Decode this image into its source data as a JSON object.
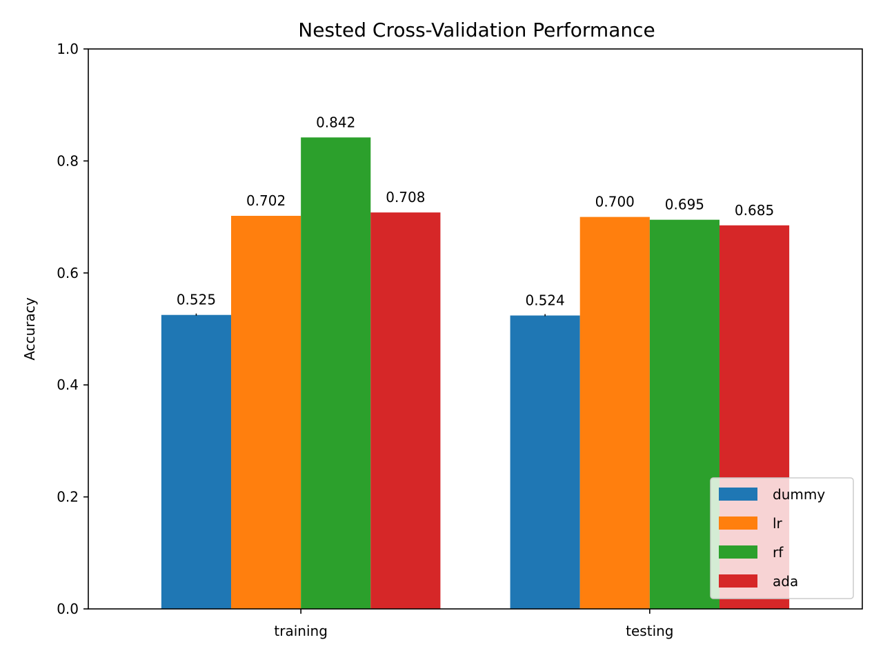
{
  "chart_data": {
    "type": "bar",
    "title": "Nested Cross-Validation Performance",
    "xlabel": "",
    "ylabel": "Accuracy",
    "ylim": [
      0,
      1.0
    ],
    "yticks": [
      "0.0",
      "0.2",
      "0.4",
      "0.6",
      "0.8",
      "1.0"
    ],
    "categories": [
      "training",
      "testing"
    ],
    "series": [
      {
        "name": "dummy",
        "color": "#1f77b4",
        "values": [
          0.525,
          0.524
        ],
        "labels": [
          "0.525",
          "0.524"
        ]
      },
      {
        "name": "lr",
        "color": "#ff7f0e",
        "values": [
          0.702,
          0.7
        ],
        "labels": [
          "0.702",
          "0.700"
        ]
      },
      {
        "name": "rf",
        "color": "#2ca02c",
        "values": [
          0.842,
          0.695
        ],
        "labels": [
          "0.842",
          "0.695"
        ]
      },
      {
        "name": "ada",
        "color": "#d62728",
        "values": [
          0.708,
          0.685
        ],
        "labels": [
          "0.708",
          "0.685"
        ]
      }
    ],
    "legend_position": "lower right",
    "grid": false
  }
}
